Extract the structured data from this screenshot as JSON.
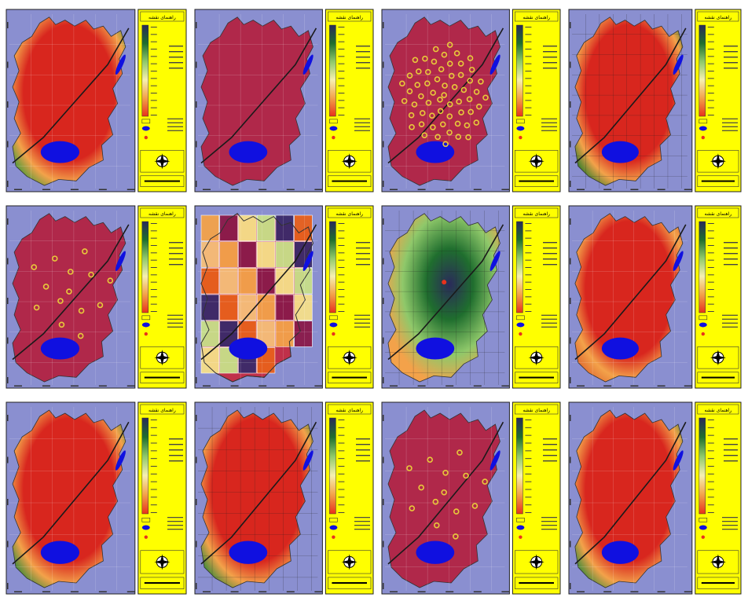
{
  "title_text": "راهنمای نقشه",
  "legend_ramp": [
    "#2a2a5a",
    "#1f6e2e",
    "#8fc86a",
    "#f6f0b0",
    "#f3a24a",
    "#e8321c"
  ],
  "colors": {
    "frame_bg": "#8a8fd0",
    "legend_bg": "#ffff00",
    "lake": "#1010e0",
    "river": "#1a1a1a",
    "city_base": "#c0304a"
  },
  "maps": [
    {
      "style": "heat",
      "hot": "#d8261e",
      "cool": "#4a9a3a"
    },
    {
      "style": "flat",
      "hot": "#b0284a"
    },
    {
      "style": "points_many",
      "hot": "#b0284a",
      "marker": "#e8c93a"
    },
    {
      "style": "heat_grid",
      "hot": "#d8261e",
      "cool": "#2f7d2a"
    },
    {
      "style": "points_few",
      "hot": "#b0284a",
      "marker": "#e8c93a"
    },
    {
      "style": "zones"
    },
    {
      "style": "radial",
      "hot": "#2a2a5a"
    },
    {
      "style": "heat",
      "hot": "#d8261e",
      "cool": "#e06a30"
    },
    {
      "style": "heat",
      "hot": "#d8261e",
      "cool": "#3a8a3a"
    },
    {
      "style": "heat_grid",
      "hot": "#d8261e",
      "cool": "#3a8a3a"
    },
    {
      "style": "points_few",
      "hot": "#b0284a",
      "marker": "#e8c93a"
    },
    {
      "style": "heat",
      "hot": "#d8261e",
      "cool": "#3a8a3a"
    }
  ]
}
